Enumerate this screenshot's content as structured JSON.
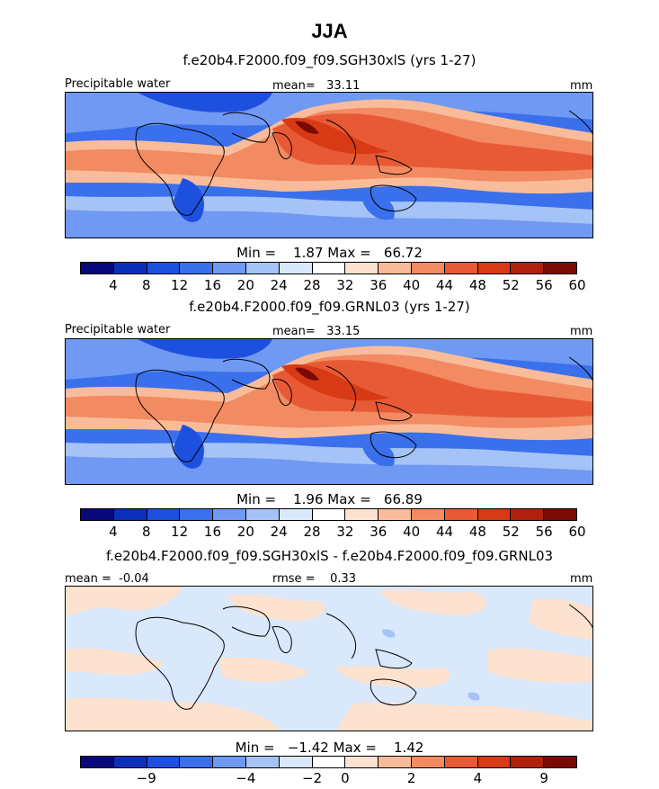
{
  "figure": {
    "season": "JJA"
  },
  "panels": [
    {
      "subtitle": "f.e20b4.F2000.f09_f09.SGH30xlS (yrs 1-27)",
      "left_label": "Precipitable water",
      "center_label": "mean=   33.11",
      "units": "mm",
      "minmax": "Min =    1.87 Max =   66.72"
    },
    {
      "subtitle": "f.e20b4.F2000.f09_f09.GRNL03 (yrs 1-27)",
      "left_label": "Precipitable water",
      "center_label": "mean=   33.15",
      "units": "mm",
      "minmax": "Min =    1.96 Max =   66.89"
    },
    {
      "subtitle": "f.e20b4.F2000.f09_f09.SGH30xlS - f.e20b4.F2000.f09_f09.GRNL03",
      "left_label": "mean =  -0.04",
      "center_label": "rmse =    0.33",
      "units": "mm",
      "minmax": "Min =   −1.42 Max =    1.42"
    }
  ],
  "colorbars": {
    "colors": [
      "#08087a",
      "#0a2fb8",
      "#1e50e0",
      "#3a70ec",
      "#6f99f2",
      "#a6c3f7",
      "#d9e8fb",
      "#ffffff",
      "#fde2cf",
      "#f9bc9a",
      "#f28a62",
      "#e85a35",
      "#d73a14",
      "#b0200c",
      "#7a0a04"
    ],
    "abs_ticks": [
      "4",
      "8",
      "12",
      "16",
      "20",
      "24",
      "28",
      "32",
      "36",
      "40",
      "44",
      "48",
      "52",
      "56",
      "60"
    ],
    "diff_ticks": [
      "−9",
      "−4",
      "−2",
      "0",
      "2",
      "4",
      "9"
    ]
  }
}
